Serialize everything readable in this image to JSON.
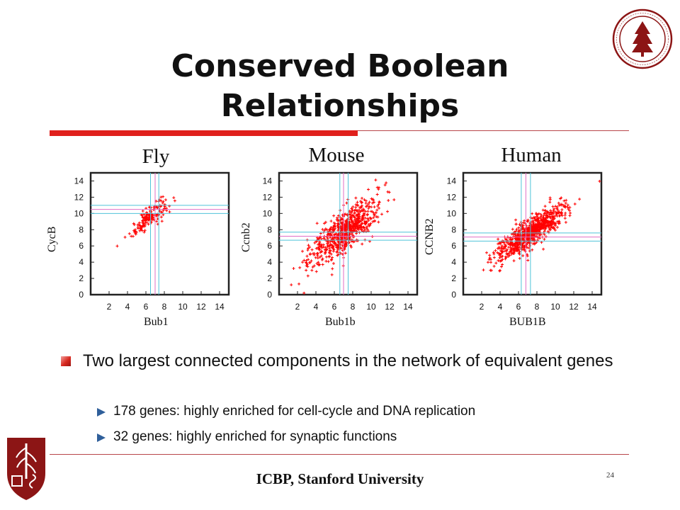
{
  "slide": {
    "title": "Conserved Boolean Relationships",
    "footer": "ICBP, Stanford University",
    "page_number": "24",
    "accent_color": "#e0201c"
  },
  "bullets": {
    "main": "Two largest connected components in the network of equivalent genes",
    "sub": [
      "178 genes: highly enriched for cell-cycle and DNA replication",
      "32 genes: highly enriched for synaptic functions"
    ]
  },
  "chart_data": [
    {
      "type": "scatter",
      "title": "Fly",
      "xlabel": "Bub1",
      "ylabel": "CycB",
      "xlim": [
        0,
        15
      ],
      "ylim": [
        0,
        15
      ],
      "xticks": [
        2,
        4,
        6,
        8,
        10,
        12,
        14
      ],
      "yticks": [
        0,
        2,
        4,
        6,
        8,
        10,
        12,
        14
      ],
      "thresholds_x": [
        6.5,
        7.0,
        7.4
      ],
      "thresholds_y": [
        10.0,
        10.5,
        11.0
      ],
      "point_color": "#ff0000",
      "cloud": {
        "x_center": 6.3,
        "y_center": 9.5,
        "spread_along": 1.4,
        "spread_across": 0.45,
        "slope": 1.1,
        "n": 160
      }
    },
    {
      "type": "scatter",
      "title": "Mouse",
      "xlabel": "Bub1b",
      "ylabel": "Ccnb2",
      "xlim": [
        0,
        15
      ],
      "ylim": [
        0,
        15
      ],
      "xticks": [
        2,
        4,
        6,
        8,
        10,
        12,
        14
      ],
      "yticks": [
        0,
        2,
        4,
        6,
        8,
        10,
        12,
        14
      ],
      "thresholds_x": [
        6.6,
        7.0,
        7.5
      ],
      "thresholds_y": [
        6.7,
        7.2,
        7.7
      ],
      "point_color": "#ff0000",
      "cloud": {
        "x_center": 7.0,
        "y_center": 7.7,
        "spread_along": 2.6,
        "spread_across": 0.9,
        "slope": 1.05,
        "n": 700
      }
    },
    {
      "type": "scatter",
      "title": "Human",
      "xlabel": "BUB1B",
      "ylabel": "CCNB2",
      "xlim": [
        0,
        15
      ],
      "ylim": [
        0,
        15
      ],
      "xticks": [
        2,
        4,
        6,
        8,
        10,
        12,
        14
      ],
      "yticks": [
        0,
        2,
        4,
        6,
        8,
        10,
        12,
        14
      ],
      "thresholds_x": [
        6.3,
        6.8,
        7.3
      ],
      "thresholds_y": [
        6.6,
        7.1,
        7.6
      ],
      "point_color": "#ff0000",
      "cloud": {
        "x_center": 7.3,
        "y_center": 7.6,
        "spread_along": 2.4,
        "spread_across": 0.7,
        "slope": 0.9,
        "n": 800
      }
    }
  ]
}
